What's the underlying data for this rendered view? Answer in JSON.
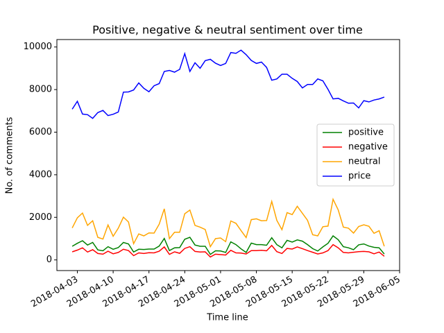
{
  "chart_data": {
    "type": "line",
    "title": "Positive, negative & neutral sentiment over time",
    "x_label": "Time line",
    "y_label": "No. of comments",
    "x": [
      "2018-04-02",
      "2018-04-03",
      "2018-04-04",
      "2018-04-05",
      "2018-04-06",
      "2018-04-07",
      "2018-04-08",
      "2018-04-09",
      "2018-04-10",
      "2018-04-11",
      "2018-04-12",
      "2018-04-13",
      "2018-04-14",
      "2018-04-15",
      "2018-04-16",
      "2018-04-17",
      "2018-04-18",
      "2018-04-19",
      "2018-04-20",
      "2018-04-21",
      "2018-04-22",
      "2018-04-23",
      "2018-04-24",
      "2018-04-25",
      "2018-04-26",
      "2018-04-27",
      "2018-04-28",
      "2018-04-29",
      "2018-04-30",
      "2018-05-01",
      "2018-05-02",
      "2018-05-03",
      "2018-05-04",
      "2018-05-05",
      "2018-05-06",
      "2018-05-07",
      "2018-05-08",
      "2018-05-09",
      "2018-05-10",
      "2018-05-11",
      "2018-05-12",
      "2018-05-13",
      "2018-05-14",
      "2018-05-15",
      "2018-05-16",
      "2018-05-17",
      "2018-05-18",
      "2018-05-19",
      "2018-05-20",
      "2018-05-21",
      "2018-05-22",
      "2018-05-23",
      "2018-05-24",
      "2018-05-25",
      "2018-05-26",
      "2018-05-27",
      "2018-05-28",
      "2018-05-29",
      "2018-05-30",
      "2018-05-31",
      "2018-06-01",
      "2018-06-02"
    ],
    "series": [
      {
        "name": "positive",
        "color": "#008000",
        "values": [
          640,
          780,
          900,
          700,
          820,
          470,
          430,
          620,
          500,
          580,
          820,
          750,
          370,
          500,
          490,
          510,
          510,
          650,
          1010,
          440,
          570,
          580,
          970,
          1060,
          700,
          640,
          640,
          260,
          430,
          420,
          350,
          850,
          720,
          520,
          350,
          790,
          720,
          720,
          690,
          1040,
          720,
          570,
          920,
          840,
          940,
          880,
          720,
          530,
          420,
          610,
          780,
          1130,
          950,
          620,
          570,
          480,
          710,
          750,
          650,
          590,
          570,
          280
        ]
      },
      {
        "name": "negative",
        "color": "#ff0000",
        "values": [
          380,
          460,
          570,
          370,
          480,
          300,
          270,
          410,
          290,
          350,
          500,
          440,
          200,
          330,
          300,
          340,
          330,
          410,
          610,
          260,
          380,
          310,
          540,
          620,
          400,
          370,
          380,
          140,
          270,
          250,
          230,
          450,
          330,
          320,
          280,
          440,
          440,
          450,
          430,
          680,
          390,
          300,
          540,
          510,
          610,
          530,
          440,
          360,
          280,
          330,
          440,
          720,
          570,
          350,
          330,
          360,
          390,
          400,
          380,
          290,
          370,
          170
        ]
      },
      {
        "name": "neutral",
        "color": "#ffa500",
        "values": [
          1500,
          1980,
          2200,
          1620,
          1840,
          1060,
          980,
          1640,
          1110,
          1490,
          2010,
          1780,
          760,
          1220,
          1130,
          1270,
          1260,
          1680,
          2400,
          1000,
          1300,
          1300,
          2170,
          2340,
          1620,
          1540,
          1430,
          620,
          1000,
          1030,
          860,
          1830,
          1720,
          1380,
          1050,
          1890,
          1930,
          1840,
          1850,
          2750,
          1860,
          1420,
          2220,
          2130,
          2520,
          2190,
          1860,
          1180,
          1130,
          1560,
          1590,
          2850,
          2350,
          1540,
          1490,
          1260,
          1570,
          1650,
          1580,
          1250,
          1370,
          640
        ]
      },
      {
        "name": "price",
        "color": "#0000ff",
        "values": [
          7080,
          7450,
          6850,
          6820,
          6650,
          6920,
          7020,
          6780,
          6840,
          6950,
          7880,
          7890,
          7980,
          8310,
          8060,
          7900,
          8180,
          8280,
          8850,
          8900,
          8820,
          8950,
          9690,
          8850,
          9260,
          9000,
          9360,
          9420,
          9240,
          9130,
          9230,
          9740,
          9700,
          9850,
          9640,
          9370,
          9230,
          9290,
          9040,
          8440,
          8500,
          8720,
          8720,
          8530,
          8380,
          8080,
          8240,
          8240,
          8500,
          8410,
          8010,
          7560,
          7590,
          7470,
          7360,
          7370,
          7140,
          7480,
          7420,
          7510,
          7560,
          7650
        ]
      }
    ],
    "xlim": [
      "2018-03-30",
      "2018-06-05"
    ],
    "xticks": [
      "2018-04-03",
      "2018-04-10",
      "2018-04-17",
      "2018-04-24",
      "2018-05-01",
      "2018-05-08",
      "2018-05-15",
      "2018-05-22",
      "2018-05-29",
      "2018-06-05"
    ],
    "ylim": [
      -500,
      10350
    ],
    "yticks": [
      0,
      2000,
      4000,
      6000,
      8000,
      10000
    ],
    "legend": "center right"
  }
}
